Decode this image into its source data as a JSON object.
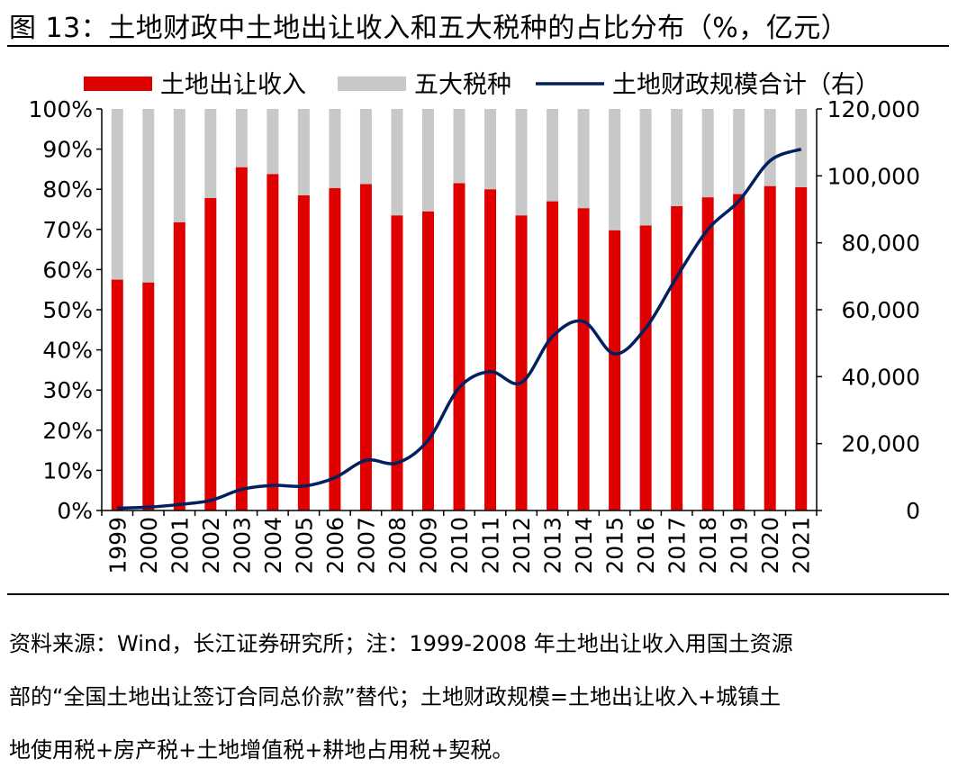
{
  "figure": {
    "title": "图 13：土地财政中土地出让收入和五大税种的占比分布（%，亿元）"
  },
  "chart_data": {
    "type": "bar+line",
    "categories": [
      "1999",
      "2000",
      "2001",
      "2002",
      "2003",
      "2004",
      "2005",
      "2006",
      "2007",
      "2008",
      "2009",
      "2010",
      "2011",
      "2012",
      "2013",
      "2014",
      "2015",
      "2016",
      "2017",
      "2018",
      "2019",
      "2020",
      "2021"
    ],
    "series": [
      {
        "name": "土地出让收入",
        "kind": "stacked-bar",
        "axis": "left",
        "color": "#e00000",
        "values": [
          57.5,
          56.8,
          71.8,
          77.8,
          85.5,
          83.8,
          78.5,
          80.3,
          81.3,
          73.5,
          74.5,
          81.5,
          80.0,
          73.5,
          77.0,
          75.3,
          69.8,
          71.0,
          75.8,
          78.0,
          78.8,
          80.8,
          80.5
        ]
      },
      {
        "name": "五大税种",
        "kind": "stacked-bar",
        "axis": "left",
        "color": "#c8c8c8",
        "values": [
          42.5,
          43.2,
          28.2,
          22.2,
          14.5,
          16.2,
          21.5,
          19.7,
          18.7,
          26.5,
          25.5,
          18.5,
          20.0,
          26.5,
          23.0,
          24.7,
          30.2,
          29.0,
          24.2,
          22.0,
          21.2,
          19.2,
          19.5
        ]
      },
      {
        "name": "土地财政规模合计（右）",
        "kind": "line",
        "axis": "right",
        "color": "#002060",
        "values": [
          700,
          1000,
          1800,
          3000,
          6300,
          7500,
          7300,
          9800,
          15000,
          14200,
          21000,
          36700,
          41500,
          38200,
          52000,
          56500,
          46800,
          54500,
          69800,
          84000,
          92500,
          104500,
          108000
        ]
      }
    ],
    "left_axis": {
      "min": 0,
      "max": 100,
      "ticks": [
        "0%",
        "10%",
        "20%",
        "30%",
        "40%",
        "50%",
        "60%",
        "70%",
        "80%",
        "90%",
        "100%"
      ]
    },
    "right_axis": {
      "min": 0,
      "max": 120000,
      "ticks": [
        "0",
        "20,000",
        "40,000",
        "60,000",
        "80,000",
        "100,000",
        "120,000"
      ]
    },
    "legend": [
      "土地出让收入",
      "五大税种",
      "土地财政规模合计（右）"
    ]
  },
  "note": {
    "line1": "资料来源：Wind，长江证券研究所；注：1999-2008 年土地出让收入用国土资源",
    "line2": "部的“全国土地出让签订合同总价款”替代；土地财政规模=土地出让收入+城镇土",
    "line3": "地使用税+房产税+土地增值税+耕地占用税+契税。"
  }
}
